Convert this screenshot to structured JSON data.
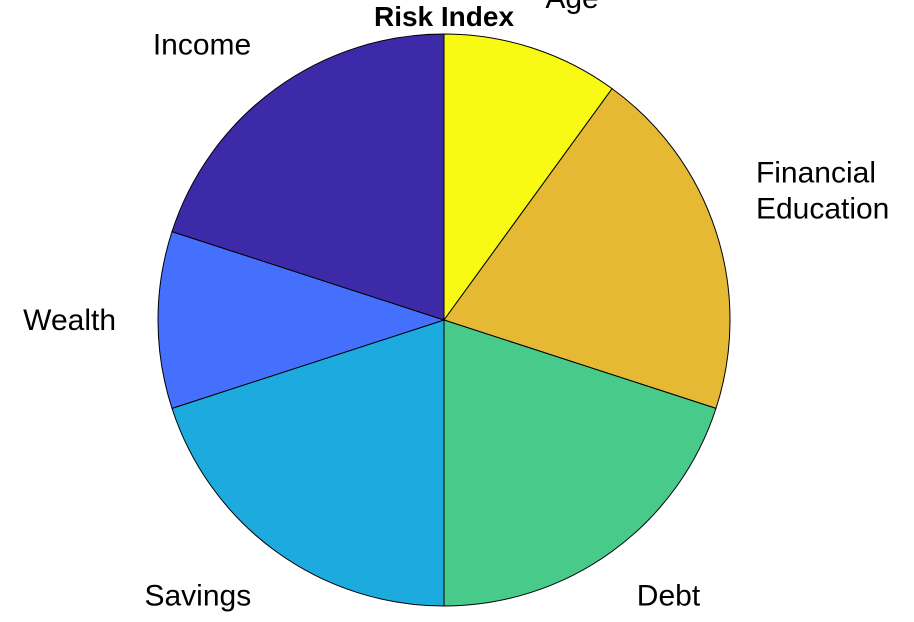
{
  "chart_data": {
    "type": "pie",
    "title": "Risk Index",
    "start": "top, clockwise",
    "slices": [
      {
        "label": [
          "Age"
        ],
        "value": 10,
        "color": "#F9FA14"
      },
      {
        "label": [
          "Financial",
          "Education"
        ],
        "value": 20,
        "color": "#E6B934"
      },
      {
        "label": [
          "Debt"
        ],
        "value": 20,
        "color": "#48CB8A"
      },
      {
        "label": [
          "Savings"
        ],
        "value": 20,
        "color": "#1CAADF"
      },
      {
        "label": [
          "Wealth"
        ],
        "value": 10,
        "color": "#4470FD"
      },
      {
        "label": [
          "Income"
        ],
        "value": 20,
        "color": "#3D2AA8"
      }
    ]
  }
}
